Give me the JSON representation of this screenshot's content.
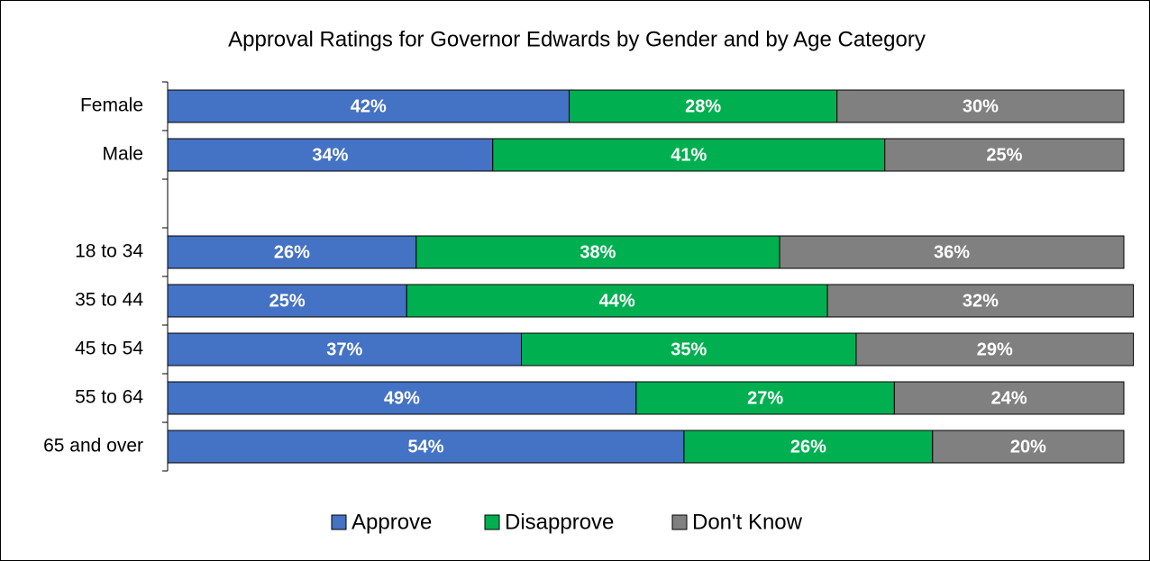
{
  "chart_data": {
    "type": "bar",
    "orientation": "horizontal",
    "stacked": true,
    "title": "Approval Ratings for Governor Edwards by Gender and by Age Category",
    "categories": [
      "Female",
      "Male",
      null,
      "18 to 34",
      "35 to 44",
      "45 to 54",
      "55 to 64",
      "65 and over"
    ],
    "series": [
      {
        "name": "Approve",
        "color": "#4472c4",
        "values": [
          42,
          34,
          null,
          26,
          25,
          37,
          49,
          54
        ],
        "value_labels": [
          "42%",
          "34%",
          null,
          "26%",
          "25%",
          "37%",
          "49%",
          "54%"
        ]
      },
      {
        "name": "Disapprove",
        "color": "#00b050",
        "values": [
          28,
          41,
          null,
          38,
          44,
          35,
          27,
          26
        ],
        "value_labels": [
          "28%",
          "41%",
          null,
          "38%",
          "44%",
          "35%",
          "27%",
          "26%"
        ]
      },
      {
        "name": "Don't Know",
        "color": "#808080",
        "values": [
          30,
          25,
          null,
          36,
          32,
          29,
          24,
          20
        ],
        "value_labels": [
          "30%",
          "25%",
          null,
          "36%",
          "32%",
          "29%",
          "24%",
          "20%"
        ]
      }
    ],
    "xlim": [
      0,
      100
    ],
    "legend": "bottom"
  }
}
